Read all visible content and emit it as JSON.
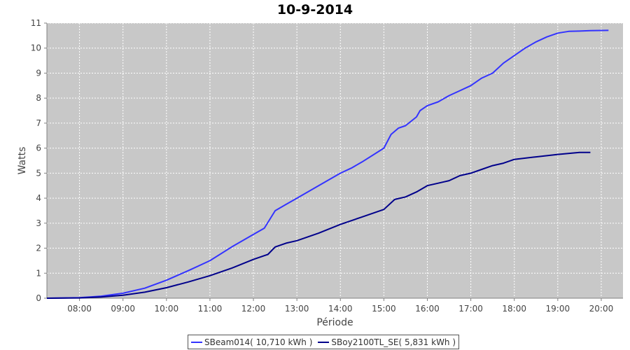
{
  "chart_data": {
    "type": "line",
    "title": "10-9-2014",
    "xlabel": "Période",
    "ylabel": "Watts",
    "ylim": [
      0,
      11
    ],
    "xlim": [
      "07:15",
      "20:30"
    ],
    "x_ticks": [
      "08:00",
      "09:00",
      "10:00",
      "11:00",
      "12:00",
      "13:00",
      "14:00",
      "15:00",
      "16:00",
      "17:00",
      "18:00",
      "19:00",
      "20:00"
    ],
    "y_ticks": [
      0,
      1,
      2,
      3,
      4,
      5,
      6,
      7,
      8,
      9,
      10,
      11
    ],
    "grid": true,
    "legend_position": "bottom",
    "background": "#c8c8c8",
    "series": [
      {
        "name": "SBeam014( 10,710 kWh )",
        "color": "#3333ff",
        "points": [
          [
            "07:15",
            0
          ],
          [
            "08:00",
            0.02
          ],
          [
            "08:30",
            0.08
          ],
          [
            "09:00",
            0.2
          ],
          [
            "09:30",
            0.4
          ],
          [
            "10:00",
            0.72
          ],
          [
            "10:30",
            1.1
          ],
          [
            "11:00",
            1.5
          ],
          [
            "11:30",
            2.05
          ],
          [
            "12:00",
            2.55
          ],
          [
            "12:15",
            2.8
          ],
          [
            "12:30",
            3.5
          ],
          [
            "12:45",
            3.75
          ],
          [
            "13:00",
            4.0
          ],
          [
            "13:30",
            4.5
          ],
          [
            "14:00",
            5.0
          ],
          [
            "14:15",
            5.2
          ],
          [
            "14:30",
            5.45
          ],
          [
            "15:00",
            6.0
          ],
          [
            "15:10",
            6.55
          ],
          [
            "15:20",
            6.8
          ],
          [
            "15:30",
            6.9
          ],
          [
            "15:45",
            7.25
          ],
          [
            "15:50",
            7.5
          ],
          [
            "16:00",
            7.7
          ],
          [
            "16:15",
            7.85
          ],
          [
            "16:30",
            8.1
          ],
          [
            "16:45",
            8.3
          ],
          [
            "17:00",
            8.5
          ],
          [
            "17:15",
            8.8
          ],
          [
            "17:30",
            9.0
          ],
          [
            "17:45",
            9.4
          ],
          [
            "18:00",
            9.7
          ],
          [
            "18:15",
            10.0
          ],
          [
            "18:30",
            10.25
          ],
          [
            "18:45",
            10.45
          ],
          [
            "19:00",
            10.6
          ],
          [
            "19:15",
            10.67
          ],
          [
            "19:30",
            10.68
          ],
          [
            "19:45",
            10.7
          ],
          [
            "20:10",
            10.71
          ]
        ]
      },
      {
        "name": "SBoy2100TL_SE( 5,831 kWh )",
        "color": "#00008b",
        "points": [
          [
            "07:15",
            0
          ],
          [
            "08:00",
            0.01
          ],
          [
            "08:30",
            0.05
          ],
          [
            "09:00",
            0.12
          ],
          [
            "09:30",
            0.24
          ],
          [
            "10:00",
            0.42
          ],
          [
            "10:30",
            0.65
          ],
          [
            "11:00",
            0.9
          ],
          [
            "11:30",
            1.2
          ],
          [
            "12:00",
            1.55
          ],
          [
            "12:20",
            1.75
          ],
          [
            "12:30",
            2.05
          ],
          [
            "12:45",
            2.2
          ],
          [
            "13:00",
            2.3
          ],
          [
            "13:30",
            2.6
          ],
          [
            "14:00",
            2.95
          ],
          [
            "14:30",
            3.25
          ],
          [
            "15:00",
            3.55
          ],
          [
            "15:15",
            3.95
          ],
          [
            "15:30",
            4.05
          ],
          [
            "15:45",
            4.25
          ],
          [
            "16:00",
            4.5
          ],
          [
            "16:15",
            4.6
          ],
          [
            "16:30",
            4.7
          ],
          [
            "16:45",
            4.9
          ],
          [
            "17:00",
            5.0
          ],
          [
            "17:15",
            5.15
          ],
          [
            "17:30",
            5.3
          ],
          [
            "17:45",
            5.4
          ],
          [
            "18:00",
            5.55
          ],
          [
            "18:30",
            5.65
          ],
          [
            "19:00",
            5.75
          ],
          [
            "19:30",
            5.83
          ],
          [
            "19:45",
            5.83
          ]
        ]
      }
    ]
  }
}
